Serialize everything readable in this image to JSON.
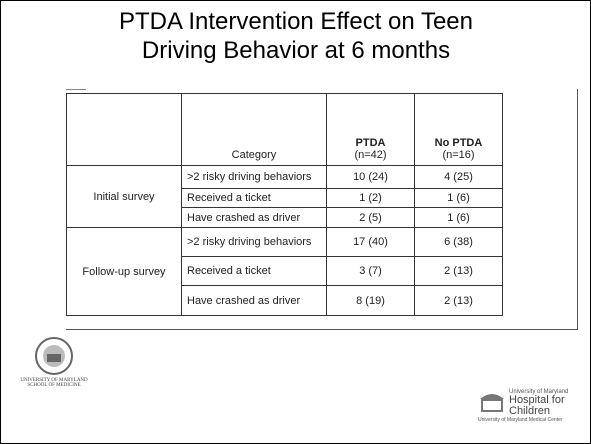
{
  "slide": {
    "title": "PTDA Intervention Effect on Teen Driving Behavior at 6 months"
  },
  "table": {
    "header": {
      "category": "Category",
      "columns": [
        {
          "name": "PTDA",
          "n": "(n=42)"
        },
        {
          "name": "No PTDA",
          "n": "(n=16)"
        }
      ]
    },
    "groups": [
      {
        "label": "Initial survey",
        "rows": [
          [
            ">2 risky driving behaviors",
            "10 (24)",
            "4 (25)"
          ],
          [
            "Received a ticket",
            "1 (2)",
            "1 (6)"
          ],
          [
            "Have crashed as driver",
            "2 (5)",
            "1 (6)"
          ]
        ]
      },
      {
        "label": "Follow-up survey",
        "rows": [
          [
            ">2 risky driving behaviors",
            "17 (40)",
            "6 (38)"
          ],
          [
            "Received a ticket",
            "3 (7)",
            "2 (13)"
          ],
          [
            "Have crashed as driver",
            "8 (19)",
            "2 (13)"
          ]
        ]
      }
    ]
  },
  "logos": {
    "left": {
      "line1": "UNIVERSITY OF MARYLAND",
      "line2": "SCHOOL OF MEDICINE"
    },
    "right": {
      "small": "University of Maryland",
      "name1": "Hospital for",
      "name2": "Children",
      "tagline": "University of Maryland Medical Center"
    }
  }
}
